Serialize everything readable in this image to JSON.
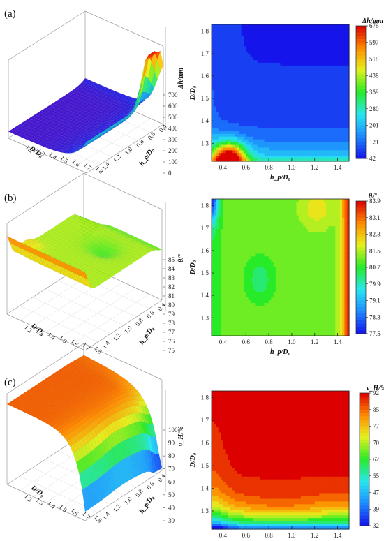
{
  "chart_data": [
    {
      "type": "surface3d",
      "panel_label": "(a)",
      "zlabel": "Δh/mm",
      "xlabel": "D/D₀",
      "ylabel": "h_p/D₀",
      "x_ticks": [
        "1.2",
        "1.3",
        "1.4",
        "1.5",
        "1.6",
        "1.7",
        "1.8"
      ],
      "y_ticks": [
        "1.4",
        "1.2",
        "1.0",
        "0.8",
        "0.6",
        "0.4"
      ],
      "z_ticks": [
        "0",
        "100",
        "200",
        "300",
        "400",
        "500",
        "600",
        "700"
      ],
      "zlim": [
        0,
        700
      ],
      "peak_value": 680,
      "min_value": 42
    },
    {
      "type": "heatmap",
      "xlabel": "h_p/D₀",
      "ylabel": "D/D₀",
      "x_ticks": [
        "0.4",
        "0.6",
        "0.8",
        "1.0",
        "1.2",
        "1.4"
      ],
      "y_ticks": [
        "1.3",
        "1.4",
        "1.5",
        "1.6",
        "1.7",
        "1.8"
      ],
      "xlim": [
        0.3,
        1.5
      ],
      "ylim": [
        1.22,
        1.83
      ],
      "colorbar_title": "Δh/mm",
      "colorbar_ticks": [
        "676",
        "597",
        "518",
        "438",
        "359",
        "280",
        "201",
        "121",
        "42"
      ],
      "range": [
        42,
        676
      ]
    },
    {
      "type": "surface3d",
      "panel_label": "(b)",
      "zlabel": "θ/°",
      "xlabel": "D/D₀",
      "ylabel": "h_p/D₀",
      "x_ticks": [
        "1.2",
        "1.3",
        "1.4",
        "1.5",
        "1.6",
        "1.7",
        "1.8"
      ],
      "y_ticks": [
        "1.4",
        "1.2",
        "1.0",
        "0.8",
        "0.6",
        "0.4"
      ],
      "z_ticks": [
        "75",
        "76",
        "77",
        "78",
        "79",
        "80",
        "81",
        "82",
        "83",
        "84",
        "85"
      ],
      "zlim": [
        75,
        85
      ],
      "peak_value": 83.9,
      "min_value": 77.5
    },
    {
      "type": "heatmap",
      "xlabel": "h_p/D₀",
      "ylabel": "D/D₀",
      "x_ticks": [
        "0.4",
        "0.6",
        "0.8",
        "1.0",
        "1.2",
        "1.4"
      ],
      "y_ticks": [
        "1.3",
        "1.4",
        "1.5",
        "1.6",
        "1.7",
        "1.8"
      ],
      "xlim": [
        0.3,
        1.5
      ],
      "ylim": [
        1.22,
        1.83
      ],
      "colorbar_title": "θ/°",
      "colorbar_ticks": [
        "83.9",
        "83.1",
        "82.3",
        "81.5",
        "80.7",
        "79.9",
        "79.1",
        "78.3",
        "77.5"
      ],
      "range": [
        77.5,
        83.9
      ]
    },
    {
      "type": "surface3d",
      "panel_label": "(c)",
      "zlabel": "v_H/%",
      "xlabel": "D/D₀",
      "ylabel": "h_p/D₀",
      "x_ticks": [
        "1.2",
        "1.3",
        "1.4",
        "1.5",
        "1.6",
        "1.7",
        "1.8"
      ],
      "y_ticks": [
        "1.4",
        "1.2",
        "1.0",
        "0.8",
        "0.6",
        "0.4"
      ],
      "z_ticks": [
        "30",
        "40",
        "50",
        "60",
        "70",
        "80",
        "90",
        "100"
      ],
      "zlim": [
        30,
        100
      ],
      "peak_value": 92,
      "min_value": 32
    },
    {
      "type": "heatmap",
      "xlabel": "h_p/D₀",
      "ylabel": "D/D₀",
      "x_ticks": [
        "0.4",
        "0.6",
        "0.8",
        "1.0",
        "1.2",
        "1.4"
      ],
      "y_ticks": [
        "1.3",
        "1.4",
        "1.5",
        "1.6",
        "1.7",
        "1.8"
      ],
      "xlim": [
        0.3,
        1.5
      ],
      "ylim": [
        1.22,
        1.83
      ],
      "colorbar_title": "v_H/%",
      "colorbar_ticks": [
        "92",
        "85",
        "77",
        "70",
        "62",
        "55",
        "47",
        "39",
        "32"
      ],
      "range": [
        32,
        92
      ]
    }
  ]
}
